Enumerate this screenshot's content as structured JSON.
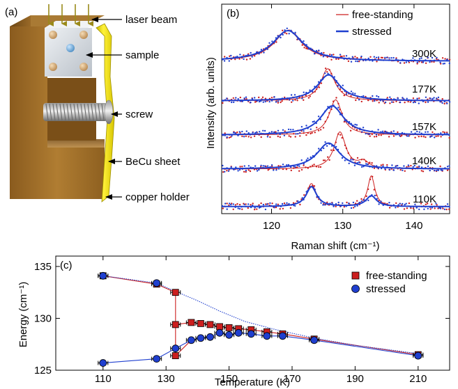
{
  "panel_a": {
    "label": "(a)",
    "callouts": [
      "laser beam",
      "sample",
      "screw",
      "BeCu sheet",
      "copper holder"
    ]
  },
  "panel_b": {
    "label": "(b)",
    "legend": [
      "free-standing",
      "stressed"
    ],
    "ylabel": "Intensity (arb. units)",
    "xlabel": "Raman shift (cm⁻¹)"
  },
  "panel_c": {
    "label": "(c)",
    "legend": [
      "free-standing",
      "stressed"
    ],
    "ylabel": "Energy (cm⁻¹)",
    "xlabel": "Temperature (K)"
  },
  "colors": {
    "free_standing": "#cc1f1f",
    "stressed": "#1f3fcf",
    "copper": "#a0702a",
    "becu": "#e8e000",
    "sample": "#d8dde3"
  },
  "chart_data": [
    {
      "type": "line",
      "panel": "(b)",
      "xlabel": "Raman shift (cm⁻¹)",
      "ylabel": "Intensity (arb. units)",
      "xlim": [
        113,
        145
      ],
      "xticks": [
        120,
        130,
        140
      ],
      "grid": false,
      "legend_position": "top-right",
      "spectra": [
        {
          "temperature": "300K",
          "free_standing": [
            {
              "center": 122.3,
              "width": 2.4,
              "amp": 1.0
            }
          ],
          "stressed": [
            {
              "center": 122.3,
              "width": 2.6,
              "amp": 1.0
            }
          ]
        },
        {
          "temperature": "177K",
          "free_standing": [
            {
              "center": 127.9,
              "width": 1.2,
              "amp": 1.05
            }
          ],
          "stressed": [
            {
              "center": 128.0,
              "width": 1.9,
              "amp": 0.85
            }
          ]
        },
        {
          "temperature": "157K",
          "free_standing": [
            {
              "center": 129.0,
              "width": 1.1,
              "amp": 1.15
            }
          ],
          "stressed": [
            {
              "center": 128.5,
              "width": 2.0,
              "amp": 0.95
            }
          ]
        },
        {
          "temperature": "140K",
          "free_standing": [
            {
              "center": 129.6,
              "width": 1.0,
              "amp": 1.2
            },
            {
              "center": 132.9,
              "width": 0.9,
              "amp": 0.22
            }
          ],
          "stressed": [
            {
              "center": 128.0,
              "width": 2.0,
              "amp": 0.85
            }
          ]
        },
        {
          "temperature": "110K",
          "free_standing": [
            {
              "center": 125.6,
              "width": 0.8,
              "amp": 0.75
            },
            {
              "center": 134.0,
              "width": 0.6,
              "amp": 1.0
            }
          ],
          "stressed": [
            {
              "center": 125.6,
              "width": 0.9,
              "amp": 0.65
            },
            {
              "center": 134.0,
              "width": 0.9,
              "amp": 0.35
            }
          ]
        }
      ]
    },
    {
      "type": "scatter",
      "panel": "(c)",
      "xlabel": "Temperature (K)",
      "ylabel": "Energy (cm⁻¹)",
      "xlim": [
        95,
        220
      ],
      "ylim": [
        125,
        136
      ],
      "xticks": [
        110,
        130,
        150,
        170,
        190,
        210
      ],
      "yticks": [
        125,
        130,
        135
      ],
      "grid": false,
      "legend_position": "top-right",
      "series": [
        {
          "name": "free-standing",
          "points": [
            [
              110,
              134.1
            ],
            [
              127,
              133.3
            ],
            [
              133,
              132.5
            ],
            [
              133,
              129.4
            ],
            [
              133,
              126.4
            ],
            [
              138,
              129.6
            ],
            [
              141,
              129.5
            ],
            [
              144,
              129.4
            ],
            [
              147,
              129.2
            ],
            [
              150,
              129.1
            ],
            [
              153,
              129.0
            ],
            [
              157,
              128.9
            ],
            [
              162,
              128.7
            ],
            [
              167,
              128.5
            ],
            [
              177,
              128.0
            ],
            [
              210,
              126.5
            ]
          ]
        },
        {
          "name": "stressed",
          "points": [
            [
              110,
              134.1
            ],
            [
              127,
              133.4
            ],
            [
              110,
              125.7
            ],
            [
              127,
              126.1
            ],
            [
              133,
              127.1
            ],
            [
              138,
              127.9
            ],
            [
              141,
              128.1
            ],
            [
              144,
              128.2
            ],
            [
              147,
              128.6
            ],
            [
              150,
              128.4
            ],
            [
              153,
              128.6
            ],
            [
              157,
              128.5
            ],
            [
              162,
              128.3
            ],
            [
              167,
              128.3
            ],
            [
              177,
              127.9
            ],
            [
              210,
              126.4
            ]
          ]
        }
      ],
      "trend_lines": [
        {
          "name": "free-standing-upper",
          "points": [
            [
              110,
              134.1
            ],
            [
              127,
              133.3
            ],
            [
              133,
              132.5
            ]
          ]
        },
        {
          "name": "free-standing-lower",
          "points": [
            [
              133,
              129.4
            ],
            [
              138,
              129.6
            ],
            [
              141,
              129.5
            ],
            [
              144,
              129.4
            ],
            [
              147,
              129.2
            ],
            [
              150,
              129.1
            ],
            [
              153,
              129.0
            ],
            [
              157,
              128.9
            ],
            [
              162,
              128.7
            ],
            [
              167,
              128.5
            ],
            [
              177,
              128.0
            ],
            [
              210,
              126.5
            ]
          ]
        },
        {
          "name": "free-standing-soft",
          "points": [
            [
              133,
              126.4
            ],
            [
              138,
              127.9
            ]
          ]
        },
        {
          "name": "free-standing-vertical",
          "points": [
            [
              133,
              126.4
            ],
            [
              133,
              132.5
            ]
          ]
        },
        {
          "name": "stressed-upper",
          "points": [
            [
              110,
              134.1
            ],
            [
              127,
              133.4
            ],
            [
              133,
              132.6
            ],
            [
              140,
              131.7
            ],
            [
              147,
              130.7
            ],
            [
              155,
              129.7
            ],
            [
              165,
              128.9
            ],
            [
              177,
              128.1
            ],
            [
              190,
              127.4
            ],
            [
              210,
              126.6
            ]
          ]
        },
        {
          "name": "stressed-lower",
          "points": [
            [
              110,
              125.7
            ],
            [
              127,
              126.1
            ],
            [
              133,
              127.1
            ],
            [
              138,
              127.9
            ],
            [
              141,
              128.1
            ],
            [
              144,
              128.2
            ],
            [
              147,
              128.6
            ],
            [
              150,
              128.4
            ],
            [
              153,
              128.6
            ],
            [
              157,
              128.5
            ],
            [
              162,
              128.3
            ],
            [
              167,
              128.3
            ],
            [
              177,
              127.9
            ],
            [
              210,
              126.4
            ]
          ]
        }
      ]
    }
  ]
}
